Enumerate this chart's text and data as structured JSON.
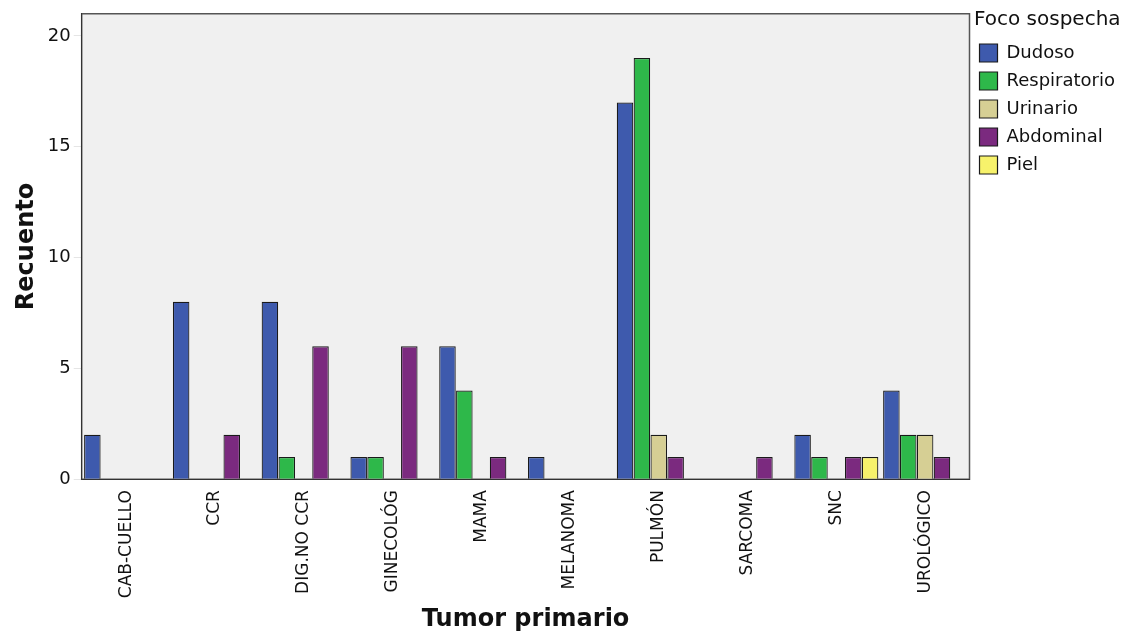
{
  "chart_data": {
    "type": "bar",
    "xlabel": "Tumor primario",
    "ylabel": "Recuento",
    "legend_title": "Foco sospecha",
    "categories": [
      "CAB-CUELLO",
      "CCR",
      "DIG.NO CCR",
      "GINECOLÓG",
      "MAMA",
      "MELANOMA",
      "PULMÓN",
      "SARCOMA",
      "SNC",
      "UROLÓGICO"
    ],
    "series": [
      {
        "name": "Dudoso",
        "color": "#3e5aad",
        "values": [
          2,
          8,
          8,
          1,
          6,
          1,
          17,
          0,
          2,
          4
        ]
      },
      {
        "name": "Respiratorio",
        "color": "#2eb84a",
        "values": [
          0,
          0,
          1,
          1,
          4,
          0,
          19,
          0,
          1,
          2
        ]
      },
      {
        "name": "Urinario",
        "color": "#d6cf94",
        "values": [
          0,
          0,
          0,
          0,
          0,
          0,
          2,
          0,
          0,
          2
        ]
      },
      {
        "name": "Abdominal",
        "color": "#7b2a7f",
        "values": [
          0,
          2,
          6,
          6,
          1,
          0,
          1,
          1,
          1,
          1
        ]
      },
      {
        "name": "Piel",
        "color": "#f7f26b",
        "values": [
          0,
          0,
          0,
          0,
          0,
          0,
          0,
          0,
          1,
          0
        ]
      }
    ],
    "ylim": [
      0,
      21
    ],
    "yticks": [
      0,
      5,
      10,
      15,
      20
    ],
    "grid": false,
    "legend": "right"
  }
}
